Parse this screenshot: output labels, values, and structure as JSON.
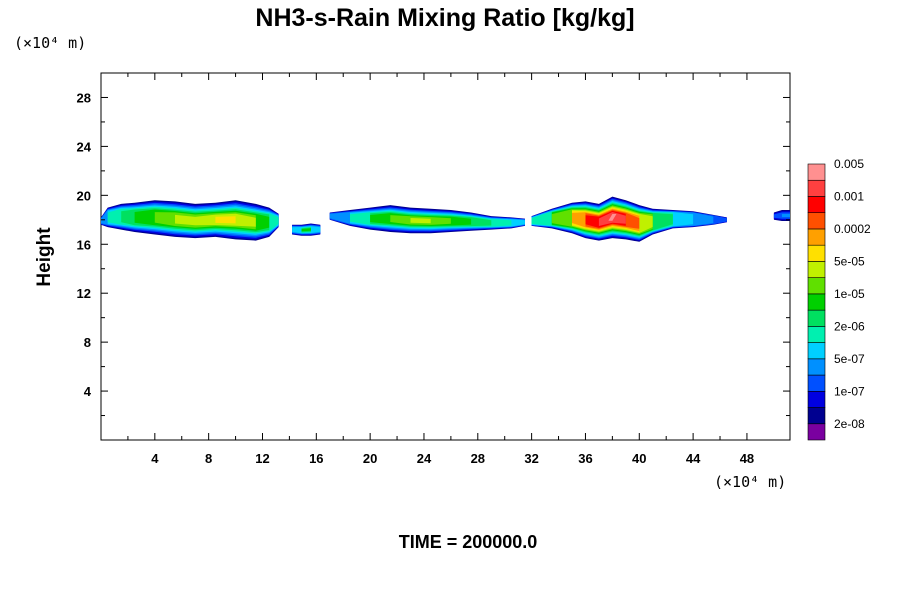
{
  "chart_data": {
    "type": "heatmap",
    "title": "NH3-s-Rain Mixing Ratio [kg/kg]",
    "ylabel": "Height",
    "xlabel": "",
    "x_unit": "(×10⁴ m)",
    "y_unit": "(×10⁴ m)",
    "xlim": [
      0,
      51.2
    ],
    "ylim": [
      0,
      30
    ],
    "xticks": [
      4,
      8,
      12,
      16,
      20,
      24,
      28,
      32,
      36,
      40,
      44,
      48
    ],
    "yticks": [
      4,
      8,
      12,
      16,
      20,
      24,
      28
    ],
    "footer": "TIME = 200000.0",
    "colorbar": {
      "colors": [
        "#7a00a0",
        "#000090",
        "#0000e0",
        "#0050ff",
        "#0090ff",
        "#00d0ff",
        "#00f0b0",
        "#00e060",
        "#00d000",
        "#60e000",
        "#c0f000",
        "#ffe000",
        "#ffa000",
        "#ff5000",
        "#ff0000",
        "#ff4040",
        "#ff9090"
      ],
      "labels": [
        "2e-08",
        "1e-07",
        "5e-07",
        "2e-06",
        "1e-05",
        "5e-05",
        "0.0002",
        "0.001",
        "0.005"
      ]
    },
    "cloud_layer": {
      "description_level_scale": "values 1-16 index the colorbar levels",
      "segments": [
        {
          "x": [
            0.0,
            0.5,
            1.5,
            2.5,
            4.0,
            5.5,
            7.0,
            8.5,
            10.0,
            11.5,
            12.5,
            13.2
          ],
          "top": [
            18.2,
            19.0,
            19.3,
            19.4,
            19.6,
            19.5,
            19.3,
            19.4,
            19.6,
            19.3,
            19.0,
            18.5
          ],
          "bottom": [
            17.6,
            17.4,
            17.2,
            17.0,
            16.8,
            16.6,
            16.5,
            16.6,
            16.4,
            16.3,
            16.6,
            17.4
          ],
          "level": [
            4,
            6,
            7,
            8,
            9,
            10,
            10,
            11,
            11,
            10,
            8,
            6
          ]
        },
        {
          "x": [
            14.2,
            14.9,
            15.6,
            16.3
          ],
          "top": [
            17.6,
            17.6,
            17.7,
            17.6
          ],
          "bottom": [
            16.8,
            16.7,
            16.7,
            16.8
          ],
          "level": [
            5,
            8,
            8,
            5
          ]
        },
        {
          "x": [
            17.0,
            18.5,
            20.0,
            21.5,
            23.0,
            24.5,
            26.0,
            27.5,
            29.0,
            30.5,
            31.5
          ],
          "top": [
            18.6,
            18.8,
            19.0,
            19.2,
            19.0,
            18.9,
            18.8,
            18.6,
            18.3,
            18.2,
            18.1
          ],
          "bottom": [
            18.0,
            17.5,
            17.2,
            17.0,
            16.9,
            16.9,
            17.0,
            17.1,
            17.2,
            17.3,
            17.5
          ],
          "level": [
            4,
            6,
            8,
            9,
            10,
            10,
            9,
            8,
            7,
            6,
            5
          ]
        },
        {
          "x": [
            32.0,
            33.5,
            35.0,
            36.0,
            37.0,
            38.0,
            39.0,
            40.0,
            41.0,
            42.5,
            44.0,
            45.5,
            46.5
          ],
          "top": [
            18.3,
            18.9,
            19.4,
            19.5,
            19.3,
            19.9,
            19.6,
            19.2,
            18.9,
            18.8,
            18.7,
            18.4,
            18.2
          ],
          "bottom": [
            17.5,
            17.3,
            16.9,
            16.5,
            16.3,
            16.5,
            16.4,
            16.2,
            16.8,
            17.3,
            17.4,
            17.6,
            17.8
          ],
          "level": [
            6,
            9,
            12,
            14,
            15,
            16,
            15,
            13,
            10,
            7,
            5,
            4,
            3
          ]
        },
        {
          "x": [
            50.0,
            50.6,
            51.2
          ],
          "top": [
            18.6,
            18.8,
            18.8
          ],
          "bottom": [
            18.0,
            17.9,
            17.9
          ],
          "level": [
            3,
            4,
            4
          ]
        }
      ]
    }
  }
}
